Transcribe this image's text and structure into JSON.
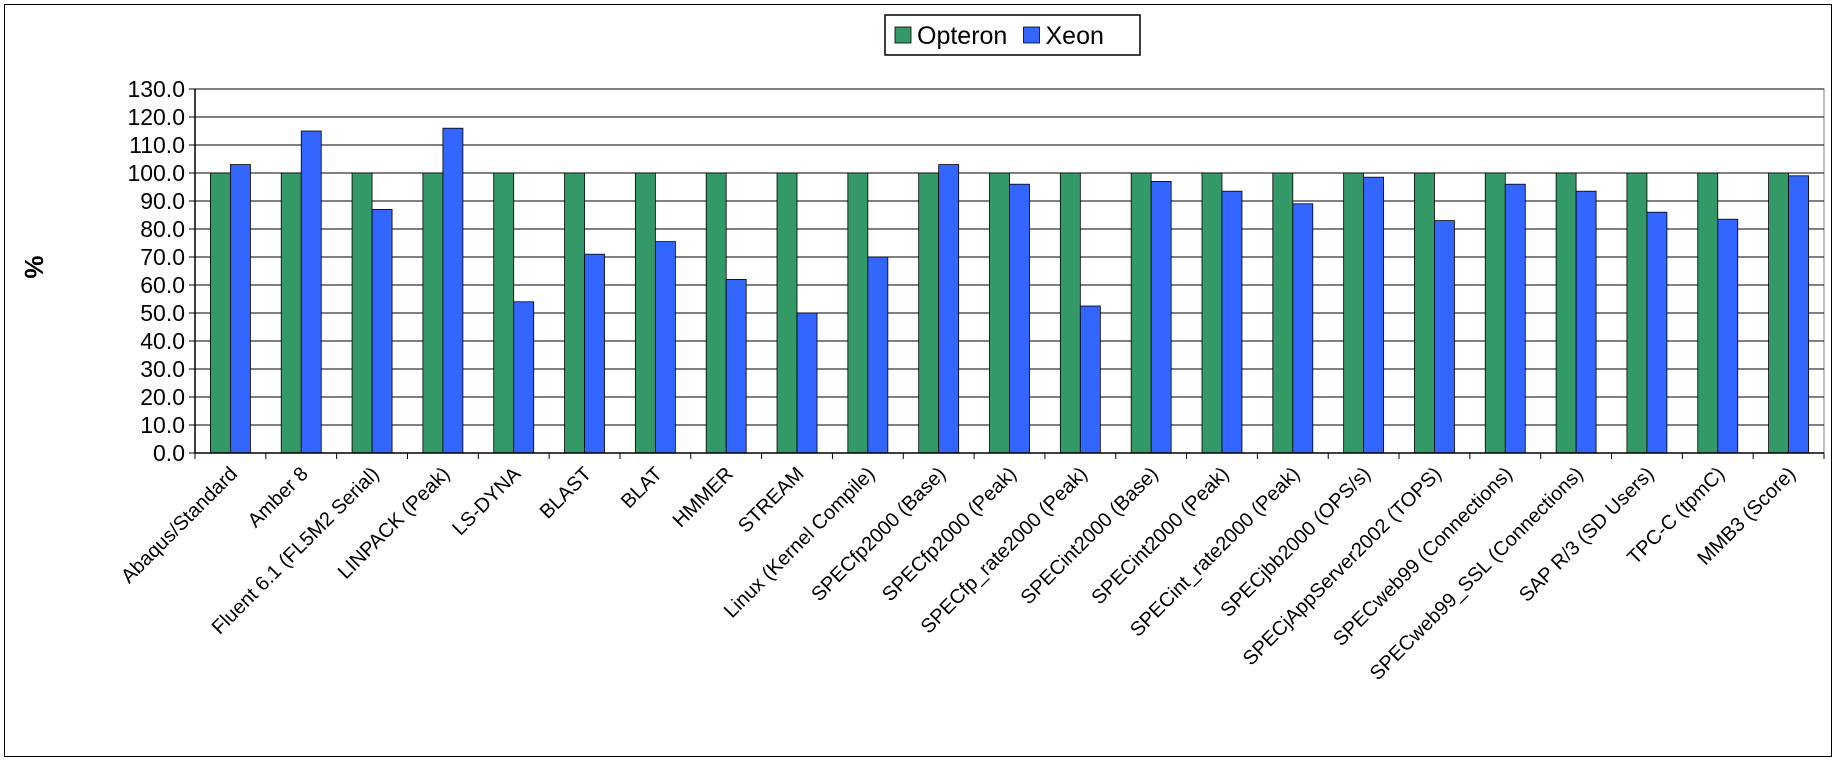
{
  "chart_data": {
    "type": "bar",
    "title": "",
    "xlabel": "",
    "ylabel": "%",
    "ylim": [
      0,
      130
    ],
    "ytick_step": 10,
    "y_tick_labels": [
      "0.0",
      "10.0",
      "20.0",
      "30.0",
      "40.0",
      "50.0",
      "60.0",
      "70.0",
      "80.0",
      "90.0",
      "100.0",
      "110.0",
      "120.0",
      "130.0"
    ],
    "grid": true,
    "legend_position": "top-center",
    "categories": [
      "Abaqus/Standard",
      "Amber 8",
      "Fluent 6.1 (FL5M2 Serial)",
      "LINPACK (Peak)",
      "LS-DYNA",
      "BLAST",
      "BLAT",
      "HMMER",
      "STREAM",
      "Linux (Kernel Compile)",
      "SPECfp2000 (Base)",
      "SPECfp2000 (Peak)",
      "SPECfp_rate2000 (Peak)",
      "SPECint2000 (Base)",
      "SPECint2000 (Peak)",
      "SPECint_rate2000 (Peak)",
      "SPECjbb2000 (OPS/s)",
      "SPECjAppServer2002 (TOPS)",
      "SPECweb99 (Connections)",
      "SPECweb99_SSL (Connections)",
      "SAP R/3 (SD Users)",
      "TPC-C (tpmC)",
      "MMB3 (Score)"
    ],
    "series": [
      {
        "name": "Opteron",
        "color": "#339966",
        "values": [
          100,
          100,
          100,
          100,
          100,
          100,
          100,
          100,
          100,
          100,
          100,
          100,
          100,
          100,
          100,
          100,
          100,
          100,
          100,
          100,
          100,
          100,
          100
        ]
      },
      {
        "name": "Xeon",
        "color": "#3366ff",
        "values": [
          103,
          115,
          87,
          116,
          54,
          71,
          75.5,
          62,
          50,
          70,
          103,
          96,
          52.5,
          97,
          93.5,
          89,
          98.5,
          83,
          96,
          93.5,
          86,
          83.5,
          99
        ]
      }
    ]
  }
}
